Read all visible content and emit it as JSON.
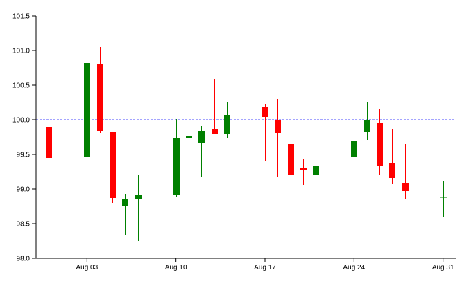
{
  "chart_data": {
    "type": "candlestick",
    "ylim": [
      98.0,
      101.5
    ],
    "yticks": [
      "98.0",
      "98.5",
      "99.0",
      "99.5",
      "100.0",
      "100.5",
      "101.0",
      "101.5"
    ],
    "xlim": [
      "2015-07-30",
      "2015-09-01"
    ],
    "xticks": [
      {
        "date": "2015-08-03",
        "label": "Aug 03"
      },
      {
        "date": "2015-08-10",
        "label": "Aug 10"
      },
      {
        "date": "2015-08-17",
        "label": "Aug 17"
      },
      {
        "date": "2015-08-24",
        "label": "Aug 24"
      },
      {
        "date": "2015-08-31",
        "label": "Aug 31"
      }
    ],
    "reference_line": {
      "value": 100.0,
      "style": "dashed",
      "color": "#4a4aff"
    },
    "colors": {
      "up": "#008000",
      "down": "#ff0000"
    },
    "candles": [
      {
        "date": "2015-07-31",
        "open": 99.89,
        "high": 99.97,
        "low": 99.23,
        "close": 99.45
      },
      {
        "date": "2015-08-03",
        "open": 99.46,
        "high": 100.82,
        "low": 99.46,
        "close": 100.82
      },
      {
        "date": "2015-08-04",
        "open": 100.8,
        "high": 101.05,
        "low": 99.81,
        "close": 99.84
      },
      {
        "date": "2015-08-05",
        "open": 99.83,
        "high": 99.83,
        "low": 98.8,
        "close": 98.87
      },
      {
        "date": "2015-08-06",
        "open": 98.75,
        "high": 98.93,
        "low": 98.34,
        "close": 98.86
      },
      {
        "date": "2015-08-07",
        "open": 98.85,
        "high": 99.2,
        "low": 98.25,
        "close": 98.92
      },
      {
        "date": "2015-08-10",
        "open": 98.92,
        "high": 100.01,
        "low": 98.88,
        "close": 99.74
      },
      {
        "date": "2015-08-11",
        "open": 99.74,
        "high": 100.18,
        "low": 99.6,
        "close": 99.76
      },
      {
        "date": "2015-08-12",
        "open": 99.67,
        "high": 99.91,
        "low": 99.17,
        "close": 99.84
      },
      {
        "date": "2015-08-13",
        "open": 99.86,
        "high": 100.59,
        "low": 99.79,
        "close": 99.79
      },
      {
        "date": "2015-08-14",
        "open": 99.79,
        "high": 100.26,
        "low": 99.73,
        "close": 100.07
      },
      {
        "date": "2015-08-17",
        "open": 100.18,
        "high": 100.23,
        "low": 99.4,
        "close": 100.04
      },
      {
        "date": "2015-08-18",
        "open": 99.99,
        "high": 100.3,
        "low": 99.18,
        "close": 99.81
      },
      {
        "date": "2015-08-19",
        "open": 99.65,
        "high": 99.8,
        "low": 98.99,
        "close": 99.21
      },
      {
        "date": "2015-08-20",
        "open": 99.3,
        "high": 99.43,
        "low": 99.06,
        "close": 99.28
      },
      {
        "date": "2015-08-21",
        "open": 99.2,
        "high": 99.45,
        "low": 98.73,
        "close": 99.33
      },
      {
        "date": "2015-08-24",
        "open": 99.47,
        "high": 100.14,
        "low": 99.38,
        "close": 99.69
      },
      {
        "date": "2015-08-25",
        "open": 99.82,
        "high": 100.26,
        "low": 99.71,
        "close": 99.99
      },
      {
        "date": "2015-08-26",
        "open": 99.96,
        "high": 100.15,
        "low": 99.2,
        "close": 99.33
      },
      {
        "date": "2015-08-27",
        "open": 99.37,
        "high": 99.86,
        "low": 99.07,
        "close": 99.16
      },
      {
        "date": "2015-08-28",
        "open": 99.09,
        "high": 99.65,
        "low": 98.86,
        "close": 98.97
      },
      {
        "date": "2015-08-31",
        "open": 98.89,
        "high": 99.11,
        "low": 98.59,
        "close": 98.89
      }
    ]
  }
}
